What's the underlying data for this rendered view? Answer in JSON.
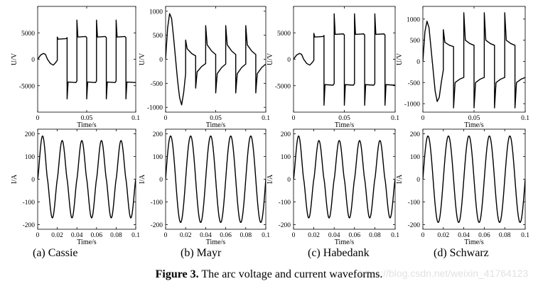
{
  "figure": {
    "caption_label": "Figure 3.",
    "caption_text": " The arc voltage and current waveforms.",
    "watermark": "https://blog.csdn.net/weixin_41764123",
    "panel_labels": [
      "(a) Cassie",
      "(b) Mayr",
      "(c) Habedank",
      "(d) Schwarz"
    ]
  },
  "chart_data": [
    {
      "type": "line",
      "model": "Cassie",
      "quantity": "voltage",
      "xlabel": "Time/s",
      "ylabel": "U/V",
      "xlim": [
        0,
        0.1
      ],
      "ylim": [
        -10000,
        10000
      ],
      "xticks": [
        0,
        0.05,
        0.1
      ],
      "xtick_labels": [
        "0",
        "0.05",
        "0.1"
      ],
      "yticks": [
        -5000,
        0,
        5000
      ],
      "ytick_labels": [
        "-5000",
        "0",
        "5000"
      ],
      "series": [
        {
          "points": [
            [
              0,
              0
            ],
            [
              0.003,
              800
            ],
            [
              0.006,
              1100
            ],
            [
              0.008,
              900
            ],
            [
              0.01,
              0
            ],
            [
              0.013,
              -800
            ],
            [
              0.016,
              -1100
            ],
            [
              0.018,
              -700
            ],
            [
              0.02,
              -200
            ],
            [
              0.02,
              4200
            ],
            [
              0.021,
              3800
            ],
            [
              0.029,
              3900
            ],
            [
              0.03,
              4100
            ],
            [
              0.03,
              -7500
            ],
            [
              0.031,
              -4300
            ],
            [
              0.039,
              -4400
            ],
            [
              0.04,
              -4100
            ],
            [
              0.04,
              7400
            ],
            [
              0.041,
              4200
            ],
            [
              0.049,
              4300
            ],
            [
              0.05,
              4100
            ],
            [
              0.05,
              -7500
            ],
            [
              0.051,
              -4300
            ],
            [
              0.059,
              -4400
            ],
            [
              0.06,
              -4100
            ],
            [
              0.06,
              7400
            ],
            [
              0.061,
              4200
            ],
            [
              0.069,
              4300
            ],
            [
              0.07,
              4100
            ],
            [
              0.07,
              -7500
            ],
            [
              0.071,
              -4300
            ],
            [
              0.079,
              -4400
            ],
            [
              0.08,
              -4100
            ],
            [
              0.08,
              7400
            ],
            [
              0.081,
              4200
            ],
            [
              0.089,
              4300
            ],
            [
              0.09,
              4100
            ],
            [
              0.09,
              -7500
            ],
            [
              0.091,
              -4300
            ],
            [
              0.1,
              -4400
            ]
          ]
        }
      ]
    },
    {
      "type": "line",
      "model": "Mayr",
      "quantity": "voltage",
      "xlabel": "Time/s",
      "ylabel": "U/V",
      "xlim": [
        0,
        0.1
      ],
      "ylim": [
        -1100,
        1100
      ],
      "xticks": [
        0,
        0.05,
        0.1
      ],
      "xtick_labels": [
        "0",
        "0.05",
        "0.1"
      ],
      "yticks": [
        -1000,
        -500,
        0,
        500,
        1000
      ],
      "ytick_labels": [
        "-1000",
        "-500",
        "0",
        "500",
        "1000"
      ],
      "series": [
        {
          "points": [
            [
              0,
              0
            ],
            [
              0.002,
              650
            ],
            [
              0.004,
              950
            ],
            [
              0.006,
              850
            ],
            [
              0.008,
              450
            ],
            [
              0.01,
              0
            ],
            [
              0.012,
              -450
            ],
            [
              0.014,
              -800
            ],
            [
              0.016,
              -950
            ],
            [
              0.018,
              -700
            ],
            [
              0.02,
              -300
            ],
            [
              0.02,
              400
            ],
            [
              0.0215,
              220
            ],
            [
              0.026,
              120
            ],
            [
              0.03,
              70
            ],
            [
              0.03,
              -600
            ],
            [
              0.0315,
              -260
            ],
            [
              0.036,
              -150
            ],
            [
              0.04,
              -90
            ],
            [
              0.04,
              700
            ],
            [
              0.0415,
              300
            ],
            [
              0.046,
              170
            ],
            [
              0.05,
              100
            ],
            [
              0.05,
              -700
            ],
            [
              0.0515,
              -300
            ],
            [
              0.056,
              -170
            ],
            [
              0.06,
              -100
            ],
            [
              0.06,
              700
            ],
            [
              0.0615,
              300
            ],
            [
              0.066,
              170
            ],
            [
              0.07,
              100
            ],
            [
              0.07,
              -700
            ],
            [
              0.0715,
              -300
            ],
            [
              0.076,
              -170
            ],
            [
              0.08,
              -100
            ],
            [
              0.08,
              700
            ],
            [
              0.0815,
              300
            ],
            [
              0.086,
              170
            ],
            [
              0.09,
              100
            ],
            [
              0.09,
              -700
            ],
            [
              0.0915,
              -300
            ],
            [
              0.096,
              -170
            ],
            [
              0.1,
              -100
            ]
          ]
        }
      ]
    },
    {
      "type": "line",
      "model": "Habedank",
      "quantity": "voltage",
      "xlabel": "Time/s",
      "ylabel": "U/V",
      "xlim": [
        0,
        0.1
      ],
      "ylim": [
        -10000,
        10000
      ],
      "xticks": [
        0,
        0.05,
        0.1
      ],
      "xtick_labels": [
        "0",
        "0.05",
        "0.1"
      ],
      "yticks": [
        -5000,
        0,
        5000
      ],
      "ytick_labels": [
        "-5000",
        "0",
        "5000"
      ],
      "series": [
        {
          "points": [
            [
              0,
              0
            ],
            [
              0.003,
              800
            ],
            [
              0.006,
              1100
            ],
            [
              0.008,
              900
            ],
            [
              0.01,
              0
            ],
            [
              0.013,
              -800
            ],
            [
              0.016,
              -1100
            ],
            [
              0.018,
              -700
            ],
            [
              0.02,
              -200
            ],
            [
              0.02,
              4900
            ],
            [
              0.021,
              4200
            ],
            [
              0.029,
              4300
            ],
            [
              0.03,
              4500
            ],
            [
              0.03,
              -8700
            ],
            [
              0.031,
              -4800
            ],
            [
              0.039,
              -4900
            ],
            [
              0.04,
              -4600
            ],
            [
              0.04,
              8600
            ],
            [
              0.041,
              4700
            ],
            [
              0.049,
              4800
            ],
            [
              0.05,
              4600
            ],
            [
              0.05,
              -8700
            ],
            [
              0.051,
              -4800
            ],
            [
              0.059,
              -4900
            ],
            [
              0.06,
              -4600
            ],
            [
              0.06,
              8600
            ],
            [
              0.061,
              4700
            ],
            [
              0.069,
              4800
            ],
            [
              0.07,
              4600
            ],
            [
              0.07,
              -8700
            ],
            [
              0.071,
              -4800
            ],
            [
              0.079,
              -4900
            ],
            [
              0.08,
              -4600
            ],
            [
              0.08,
              8600
            ],
            [
              0.081,
              4700
            ],
            [
              0.089,
              4800
            ],
            [
              0.09,
              4600
            ],
            [
              0.09,
              -8700
            ],
            [
              0.091,
              -4800
            ],
            [
              0.1,
              -4900
            ]
          ]
        }
      ]
    },
    {
      "type": "line",
      "model": "Schwarz",
      "quantity": "voltage",
      "xlabel": "Time/s",
      "ylabel": "U/V",
      "xlim": [
        0,
        0.1
      ],
      "ylim": [
        -1200,
        1300
      ],
      "xticks": [
        0,
        0.05,
        0.1
      ],
      "xtick_labels": [
        "0",
        "0.05",
        "0.1"
      ],
      "yticks": [
        -1000,
        -500,
        0,
        500,
        1000
      ],
      "ytick_labels": [
        "-1000",
        "-500",
        "0",
        "500",
        "1000"
      ],
      "series": [
        {
          "points": [
            [
              0,
              0
            ],
            [
              0.002,
              700
            ],
            [
              0.004,
              950
            ],
            [
              0.006,
              800
            ],
            [
              0.008,
              300
            ],
            [
              0.01,
              -200
            ],
            [
              0.012,
              -700
            ],
            [
              0.014,
              -950
            ],
            [
              0.016,
              -850
            ],
            [
              0.018,
              -500
            ],
            [
              0.02,
              -200
            ],
            [
              0.02,
              750
            ],
            [
              0.0215,
              450
            ],
            [
              0.026,
              380
            ],
            [
              0.03,
              350
            ],
            [
              0.03,
              -1100
            ],
            [
              0.0315,
              -500
            ],
            [
              0.036,
              -420
            ],
            [
              0.04,
              -380
            ],
            [
              0.04,
              1150
            ],
            [
              0.0415,
              500
            ],
            [
              0.046,
              420
            ],
            [
              0.05,
              380
            ],
            [
              0.05,
              -1100
            ],
            [
              0.0515,
              -500
            ],
            [
              0.056,
              -420
            ],
            [
              0.06,
              -380
            ],
            [
              0.06,
              1150
            ],
            [
              0.0615,
              500
            ],
            [
              0.066,
              420
            ],
            [
              0.07,
              380
            ],
            [
              0.07,
              -1100
            ],
            [
              0.0715,
              -500
            ],
            [
              0.076,
              -420
            ],
            [
              0.08,
              -380
            ],
            [
              0.08,
              1150
            ],
            [
              0.0815,
              500
            ],
            [
              0.086,
              420
            ],
            [
              0.09,
              380
            ],
            [
              0.09,
              -1100
            ],
            [
              0.0915,
              -500
            ],
            [
              0.096,
              -420
            ],
            [
              0.1,
              -380
            ]
          ]
        }
      ]
    },
    {
      "type": "line",
      "model": "Cassie",
      "quantity": "current",
      "xlabel": "Time/s",
      "ylabel": "I/A",
      "xlim": [
        0,
        0.1
      ],
      "ylim": [
        -220,
        220
      ],
      "xticks": [
        0,
        0.02,
        0.04,
        0.06,
        0.08,
        0.1
      ],
      "xtick_labels": [
        "0",
        "0.02",
        "0.04",
        "0.06",
        "0.08",
        "0.1"
      ],
      "yticks": [
        -200,
        -100,
        0,
        100,
        200
      ],
      "ytick_labels": [
        "-200",
        "-100",
        "0",
        "100",
        "200"
      ],
      "series": [
        {
          "function": "sine",
          "frequency_hz": 50,
          "amplitude_first": 190,
          "amplitude": 170,
          "zero_flat": 0.8
        }
      ]
    },
    {
      "type": "line",
      "model": "Mayr",
      "quantity": "current",
      "xlabel": "Time/s",
      "ylabel": "I/A",
      "xlim": [
        0,
        0.1
      ],
      "ylim": [
        -220,
        220
      ],
      "xticks": [
        0,
        0.02,
        0.04,
        0.06,
        0.08,
        0.1
      ],
      "xtick_labels": [
        "0",
        "0.02",
        "0.04",
        "0.06",
        "0.08",
        "0.1"
      ],
      "yticks": [
        -200,
        -100,
        0,
        100,
        200
      ],
      "ytick_labels": [
        "-200",
        "-100",
        "0",
        "100",
        "200"
      ],
      "series": [
        {
          "function": "sine",
          "frequency_hz": 50,
          "amplitude_first": 190,
          "amplitude": 190,
          "zero_flat": 0
        }
      ]
    },
    {
      "type": "line",
      "model": "Habedank",
      "quantity": "current",
      "xlabel": "Time/s",
      "ylabel": "I/A",
      "xlim": [
        0,
        0.1
      ],
      "ylim": [
        -220,
        220
      ],
      "xticks": [
        0,
        0.02,
        0.04,
        0.06,
        0.08,
        0.1
      ],
      "xtick_labels": [
        "0",
        "0.02",
        "0.04",
        "0.06",
        "0.08",
        "0.1"
      ],
      "yticks": [
        -200,
        -100,
        0,
        100,
        200
      ],
      "ytick_labels": [
        "-200",
        "-100",
        "0",
        "100",
        "200"
      ],
      "series": [
        {
          "function": "sine",
          "frequency_hz": 50,
          "amplitude_first": 190,
          "amplitude": 170,
          "zero_flat": 0.8
        }
      ]
    },
    {
      "type": "line",
      "model": "Schwarz",
      "quantity": "current",
      "xlabel": "Time/s",
      "ylabel": "I/A",
      "xlim": [
        0,
        0.1
      ],
      "ylim": [
        -220,
        220
      ],
      "xticks": [
        0,
        0.02,
        0.04,
        0.06,
        0.08,
        0.1
      ],
      "xtick_labels": [
        "0",
        "0.02",
        "0.04",
        "0.06",
        "0.08",
        "0.1"
      ],
      "yticks": [
        -200,
        -100,
        0,
        100,
        200
      ],
      "ytick_labels": [
        "-200",
        "-100",
        "0",
        "100",
        "200"
      ],
      "series": [
        {
          "function": "sine",
          "frequency_hz": 50,
          "amplitude_first": 190,
          "amplitude": 190,
          "zero_flat": 0
        }
      ]
    }
  ]
}
